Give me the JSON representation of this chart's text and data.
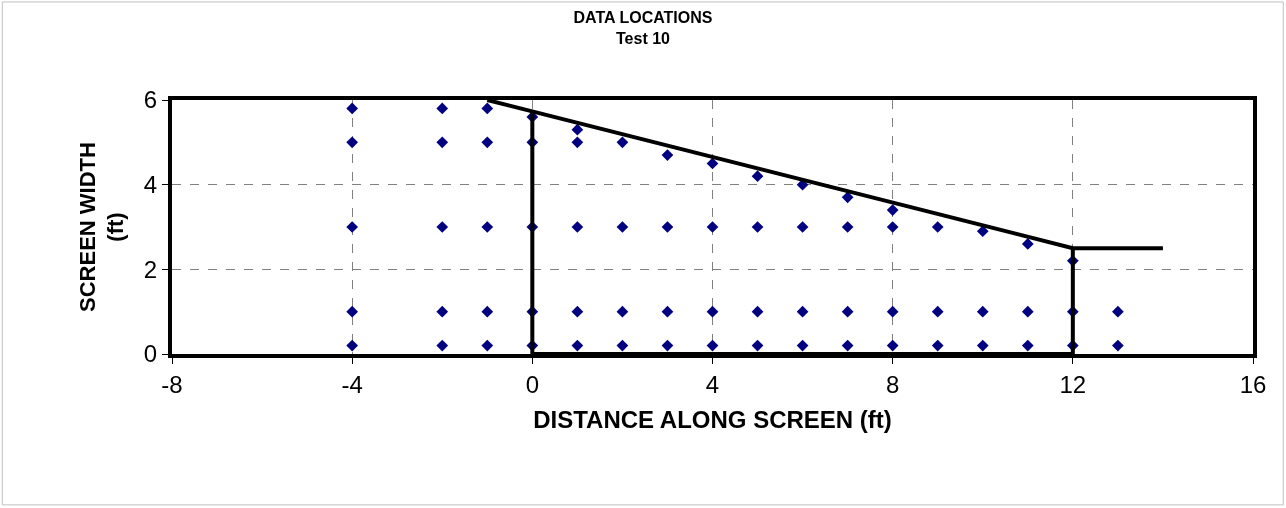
{
  "chart_data": {
    "type": "scatter",
    "title": "DATA LOCATIONS",
    "subtitle": "Test 10",
    "xlabel": "DISTANCE ALONG SCREEN (ft)",
    "ylabel": "SCREEN WIDTH (ft)",
    "xlim": [
      -8,
      16
    ],
    "xticks": [
      -8,
      -4,
      0,
      4,
      8,
      12,
      16
    ],
    "ylim": [
      0,
      6
    ],
    "yticks": [
      0,
      2,
      4,
      6
    ],
    "grid": true,
    "legend": false,
    "series": [
      {
        "marker": "diamond",
        "color": "#000080",
        "x": [
          -4,
          -4,
          -4,
          -4,
          -4,
          -2,
          -2,
          -2,
          -2,
          -2,
          -1,
          -1,
          -1,
          -1,
          -1,
          0,
          0,
          0,
          0,
          0,
          1,
          1,
          1,
          1,
          1,
          2,
          2,
          2,
          2,
          3,
          3,
          3,
          3,
          4,
          4,
          4,
          4,
          5,
          5,
          5,
          5,
          6,
          6,
          6,
          6,
          7,
          7,
          7,
          7,
          8,
          8,
          8,
          8,
          9,
          9,
          9,
          10,
          10,
          10,
          11,
          11,
          11,
          12,
          12,
          12,
          13,
          13
        ],
        "values": [
          5.8,
          5,
          3,
          1,
          0.2,
          5.8,
          5,
          3,
          1,
          0.2,
          5.8,
          5,
          3,
          1,
          0.2,
          5.6,
          5,
          3,
          1,
          0.2,
          5.3,
          5,
          3,
          1,
          0.2,
          5,
          3,
          1,
          0.2,
          4.7,
          3,
          1,
          0.2,
          4.5,
          3,
          1,
          0.2,
          4.2,
          3,
          1,
          0.2,
          4,
          3,
          1,
          0.2,
          3.7,
          3,
          1,
          0.2,
          3.4,
          3,
          1,
          0.2,
          3,
          1,
          0.2,
          2.9,
          1,
          0.2,
          2.6,
          1,
          0.2,
          2.2,
          1,
          0.2,
          1,
          0.2
        ]
      },
      {
        "type": "line",
        "marker": "none",
        "color": "#000000",
        "x": [
          -1,
          12,
          14
        ],
        "values": [
          6,
          2.5,
          2.5
        ]
      },
      {
        "type": "line",
        "marker": "none",
        "color": "#000000",
        "x": [
          0,
          0,
          12,
          12
        ],
        "values": [
          5.7,
          0,
          0,
          2.5
        ]
      }
    ]
  }
}
